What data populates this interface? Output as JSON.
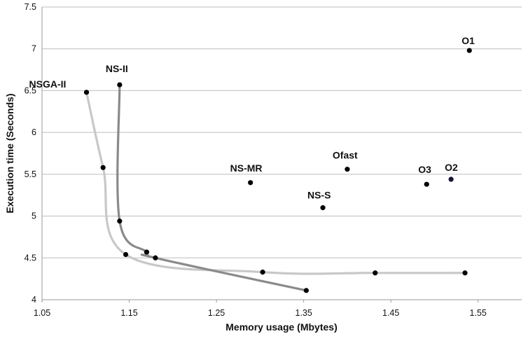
{
  "chart_data": {
    "type": "scatter",
    "xlabel": "Memory usage (Mbytes)",
    "ylabel": "Execution time (Seconds)",
    "xlim": [
      1.05,
      1.6
    ],
    "ylim": [
      4,
      7.5
    ],
    "x_ticks": [
      "1.05",
      "1.15",
      "1.25",
      "1.35",
      "1.45",
      "1.55"
    ],
    "y_ticks": [
      "4",
      "4.5",
      "5",
      "5.5",
      "6",
      "6.5",
      "7",
      "7.5"
    ],
    "grid": "horizontal",
    "legend": "none",
    "series": [
      {
        "name": "NSGA-II",
        "line_color": "#c8c8c8",
        "points": [
          [
            1.101,
            6.48
          ],
          [
            1.12,
            5.58
          ],
          [
            1.146,
            4.54
          ],
          [
            1.303,
            4.33
          ],
          [
            1.432,
            4.32
          ],
          [
            1.535,
            4.32
          ]
        ]
      },
      {
        "name": "NS-II",
        "line_color": "#8a8a8a",
        "points": [
          [
            1.139,
            6.57
          ],
          [
            1.139,
            4.94
          ],
          [
            1.17,
            4.57
          ],
          [
            1.18,
            4.5
          ],
          [
            1.353,
            4.11
          ]
        ]
      }
    ],
    "labeled_points": [
      {
        "label": "NS-MR",
        "x": 1.289,
        "y": 5.4
      },
      {
        "label": "Ofast",
        "x": 1.4,
        "y": 5.56
      },
      {
        "label": "NS-S",
        "x": 1.372,
        "y": 5.1
      },
      {
        "label": "O3",
        "x": 1.491,
        "y": 5.38
      },
      {
        "label": "O2",
        "x": 1.519,
        "y": 5.44
      },
      {
        "label": "O1",
        "x": 1.54,
        "y": 6.98
      }
    ]
  }
}
